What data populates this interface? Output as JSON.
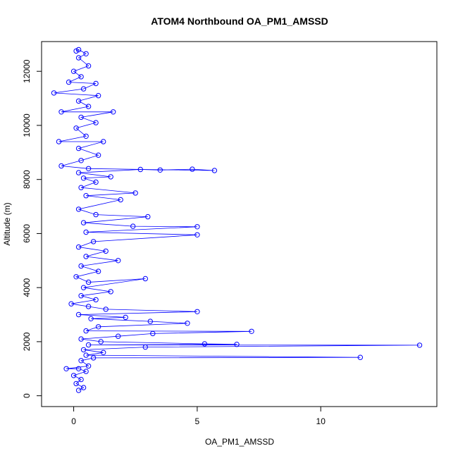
{
  "chart_data": {
    "type": "scatter",
    "title": "ATOM4 Northbound OA_PM1_AMSSD",
    "xlabel": "OA_PM1_AMSSD",
    "ylabel": "Altitude (m)",
    "xlim": [
      -1.3,
      14.7
    ],
    "ylim": [
      -400,
      13100
    ],
    "x_ticks": [
      0,
      5,
      10
    ],
    "y_ticks": [
      0,
      2000,
      4000,
      6000,
      8000,
      10000,
      12000
    ],
    "x_tick_labels": [
      "0",
      "5",
      "10"
    ],
    "y_tick_labels": [
      "0",
      "2000",
      "4000",
      "6000",
      "8000",
      "10000",
      "12000"
    ],
    "grid": false,
    "legend": "none",
    "series": [
      {
        "color": "#0000ff",
        "marker": "open-circle",
        "connected": true,
        "points": [
          [
            0.2,
            200
          ],
          [
            0.4,
            300
          ],
          [
            0.1,
            450
          ],
          [
            0.3,
            600
          ],
          [
            0.0,
            750
          ],
          [
            0.5,
            900
          ],
          [
            0.2,
            1000
          ],
          [
            -0.3,
            1000
          ],
          [
            0.6,
            1100
          ],
          [
            0.3,
            1300
          ],
          [
            0.8,
            1400
          ],
          [
            11.6,
            1420
          ],
          [
            0.5,
            1500
          ],
          [
            1.2,
            1600
          ],
          [
            0.4,
            1700
          ],
          [
            2.9,
            1800
          ],
          [
            14.0,
            1870
          ],
          [
            0.6,
            1880
          ],
          [
            6.6,
            1900
          ],
          [
            5.3,
            1920
          ],
          [
            1.1,
            2000
          ],
          [
            0.3,
            2100
          ],
          [
            1.8,
            2200
          ],
          [
            3.2,
            2300
          ],
          [
            7.2,
            2380
          ],
          [
            0.5,
            2400
          ],
          [
            1.0,
            2550
          ],
          [
            4.6,
            2680
          ],
          [
            3.1,
            2750
          ],
          [
            0.7,
            2850
          ],
          [
            2.1,
            2900
          ],
          [
            0.2,
            3000
          ],
          [
            5.0,
            3110
          ],
          [
            1.3,
            3200
          ],
          [
            0.6,
            3300
          ],
          [
            -0.1,
            3400
          ],
          [
            0.9,
            3550
          ],
          [
            0.3,
            3700
          ],
          [
            1.5,
            3850
          ],
          [
            0.4,
            4000
          ],
          [
            2.9,
            4330
          ],
          [
            0.6,
            4200
          ],
          [
            0.1,
            4400
          ],
          [
            1.0,
            4600
          ],
          [
            0.3,
            4800
          ],
          [
            1.8,
            5000
          ],
          [
            0.5,
            5150
          ],
          [
            1.3,
            5350
          ],
          [
            0.2,
            5500
          ],
          [
            0.8,
            5700
          ],
          [
            5.0,
            5950
          ],
          [
            0.5,
            6050
          ],
          [
            5.0,
            6250
          ],
          [
            2.4,
            6270
          ],
          [
            0.4,
            6400
          ],
          [
            3.0,
            6620
          ],
          [
            0.9,
            6700
          ],
          [
            0.2,
            6900
          ],
          [
            1.9,
            7250
          ],
          [
            0.5,
            7400
          ],
          [
            2.5,
            7500
          ],
          [
            0.3,
            7700
          ],
          [
            0.9,
            7900
          ],
          [
            0.4,
            8050
          ],
          [
            1.5,
            8100
          ],
          [
            0.2,
            8250
          ],
          [
            2.7,
            8370
          ],
          [
            3.5,
            8350
          ],
          [
            4.8,
            8380
          ],
          [
            5.7,
            8330
          ],
          [
            0.6,
            8400
          ],
          [
            -0.5,
            8500
          ],
          [
            0.3,
            8700
          ],
          [
            1.0,
            8900
          ],
          [
            0.2,
            9150
          ],
          [
            1.2,
            9400
          ],
          [
            -0.6,
            9400
          ],
          [
            0.5,
            9600
          ],
          [
            0.1,
            9900
          ],
          [
            0.9,
            10100
          ],
          [
            0.3,
            10300
          ],
          [
            1.6,
            10500
          ],
          [
            -0.5,
            10500
          ],
          [
            0.6,
            10700
          ],
          [
            0.2,
            10900
          ],
          [
            1.0,
            11100
          ],
          [
            -0.8,
            11200
          ],
          [
            0.4,
            11350
          ],
          [
            0.9,
            11550
          ],
          [
            -0.2,
            11600
          ],
          [
            0.3,
            11800
          ],
          [
            0.0,
            12000
          ],
          [
            0.6,
            12200
          ],
          [
            0.2,
            12500
          ],
          [
            0.5,
            12650
          ],
          [
            0.2,
            12800
          ],
          [
            0.1,
            12750
          ]
        ]
      }
    ]
  }
}
